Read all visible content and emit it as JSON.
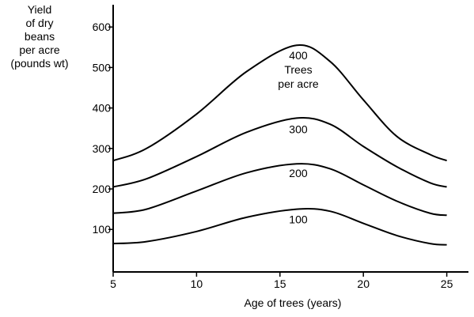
{
  "chart_data": {
    "type": "line",
    "ylabel_lines": [
      "Yield",
      "of dry",
      "beans",
      "per acre",
      "(pounds wt)"
    ],
    "xlabel": "Age of trees (years)",
    "x_ticks": [
      5,
      10,
      15,
      20,
      25
    ],
    "y_ticks": [
      100,
      200,
      300,
      400,
      500,
      600
    ],
    "xlim": [
      5,
      26.3
    ],
    "ylim": [
      -5,
      655
    ],
    "grid": false,
    "series": [
      {
        "name": "100",
        "x": [
          5,
          7,
          10,
          13,
          16,
          18,
          20,
          22,
          24,
          25
        ],
        "y": [
          65,
          70,
          95,
          130,
          150,
          145,
          115,
          85,
          65,
          62
        ]
      },
      {
        "name": "200",
        "x": [
          5,
          7,
          10,
          13,
          16,
          18,
          20,
          22,
          24,
          25
        ],
        "y": [
          140,
          150,
          195,
          240,
          262,
          250,
          210,
          170,
          140,
          135
        ]
      },
      {
        "name": "300",
        "x": [
          5,
          7,
          10,
          13,
          16,
          18,
          20,
          22,
          24,
          25
        ],
        "y": [
          205,
          225,
          280,
          340,
          375,
          360,
          305,
          255,
          215,
          205
        ]
      },
      {
        "name": "400",
        "x": [
          5,
          7,
          10,
          13,
          16,
          18,
          20,
          22,
          24,
          25
        ],
        "y": [
          270,
          300,
          385,
          490,
          555,
          515,
          420,
          330,
          285,
          270
        ]
      }
    ],
    "curve_annotations": [
      {
        "series": "400",
        "lines": [
          "400",
          "Trees",
          "per acre"
        ],
        "x": 16.1,
        "y": 520
      },
      {
        "series": "300",
        "lines": [
          "300"
        ],
        "x": 16.1,
        "y": 338
      },
      {
        "series": "200",
        "lines": [
          "200"
        ],
        "x": 16.1,
        "y": 229
      },
      {
        "series": "100",
        "lines": [
          "100"
        ],
        "x": 16.1,
        "y": 115
      }
    ]
  }
}
